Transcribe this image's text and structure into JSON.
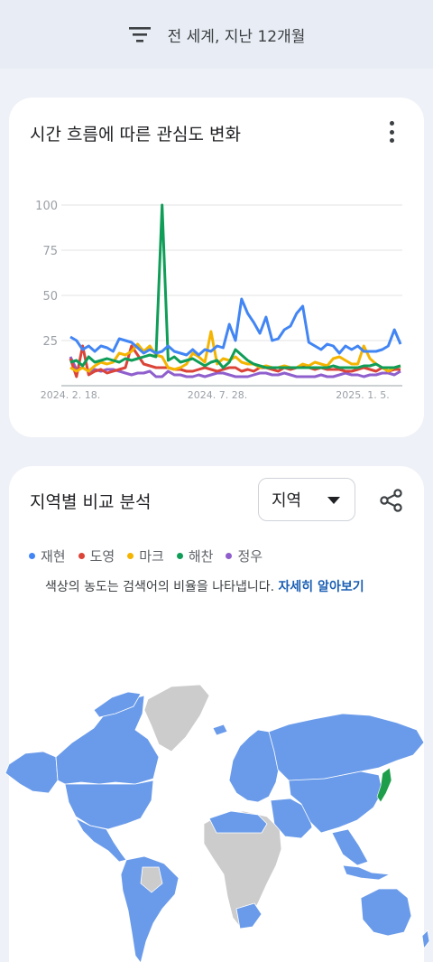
{
  "topbar": {
    "filter_label": "전 세계, 지난 12개월",
    "filter_icon": "filter-icon"
  },
  "interest_card": {
    "title": "시간 흐름에 따른 관심도 변화",
    "more_icon": "more-vert-icon"
  },
  "chart_data": {
    "type": "line",
    "title": "시간 흐름에 따른 관심도 변화",
    "ylim": [
      0,
      100
    ],
    "y_ticks": [
      "100",
      "75",
      "50",
      "25"
    ],
    "x_tick_labels": [
      "2024. 2. 18.",
      "2024. 7. 28.",
      "2025. 1. 5."
    ],
    "grid": true,
    "series": [
      {
        "name": "재현",
        "color": "#4285f4",
        "values": [
          27,
          25,
          20,
          22,
          19,
          22,
          21,
          19,
          26,
          25,
          24,
          21,
          18,
          20,
          18,
          19,
          22,
          19,
          18,
          17,
          20,
          17,
          20,
          19,
          22,
          21,
          34,
          25,
          48,
          40,
          35,
          29,
          38,
          25,
          26,
          31,
          33,
          40,
          44,
          24,
          22,
          20,
          23,
          22,
          18,
          22,
          20,
          22,
          19,
          19,
          19,
          20,
          22,
          31,
          23
        ]
      },
      {
        "name": "도영",
        "color": "#db4437",
        "values": [
          15,
          5,
          22,
          6,
          8,
          9,
          7,
          8,
          9,
          10,
          22,
          17,
          12,
          11,
          10,
          10,
          10,
          9,
          9,
          8,
          8,
          9,
          10,
          9,
          8,
          9,
          10,
          10,
          8,
          9,
          8,
          10,
          10,
          9,
          8,
          10,
          9,
          10,
          11,
          10,
          9,
          10,
          9,
          9,
          9,
          8,
          8,
          9,
          10,
          9,
          8,
          10,
          8,
          9,
          9
        ]
      },
      {
        "name": "마크",
        "color": "#f4b400",
        "values": [
          10,
          8,
          10,
          8,
          11,
          13,
          12,
          13,
          18,
          17,
          19,
          23,
          19,
          22,
          17,
          16,
          10,
          9,
          10,
          12,
          18,
          16,
          13,
          30,
          12,
          15,
          14,
          16,
          13,
          12,
          12,
          10,
          11,
          10,
          10,
          11,
          10,
          10,
          12,
          11,
          13,
          12,
          11,
          15,
          16,
          14,
          12,
          12,
          22,
          15,
          12,
          10,
          8,
          10,
          11
        ]
      },
      {
        "name": "해찬",
        "color": "#0f9d58",
        "values": [
          13,
          14,
          11,
          16,
          13,
          14,
          15,
          14,
          13,
          15,
          14,
          15,
          16,
          17,
          16,
          100,
          14,
          16,
          13,
          14,
          15,
          13,
          11,
          13,
          14,
          10,
          13,
          20,
          17,
          14,
          12,
          11,
          10,
          10,
          10,
          10,
          10,
          10,
          10,
          10,
          10,
          10,
          10,
          11,
          10,
          10,
          10,
          10,
          11,
          11,
          12,
          10,
          10,
          10,
          11
        ]
      },
      {
        "name": "정우",
        "color": "#8f5fcd",
        "values": [
          16,
          9,
          10,
          8,
          9,
          8,
          9,
          9,
          8,
          7,
          6,
          7,
          7,
          8,
          5,
          5,
          8,
          6,
          6,
          5,
          5,
          6,
          5,
          6,
          7,
          7,
          6,
          5,
          5,
          5,
          6,
          7,
          7,
          6,
          6,
          7,
          6,
          5,
          5,
          5,
          5,
          6,
          5,
          5,
          6,
          7,
          6,
          6,
          5,
          6,
          6,
          7,
          7,
          6,
          8
        ]
      }
    ]
  },
  "region_card": {
    "title": "지역별 비교 분석",
    "select_value": "지역",
    "share_icon": "share-icon",
    "legend": [
      {
        "label": "재현",
        "color": "#4285f4"
      },
      {
        "label": "도영",
        "color": "#db4437"
      },
      {
        "label": "마크",
        "color": "#f4b400"
      },
      {
        "label": "해찬",
        "color": "#0f9d58"
      },
      {
        "label": "정우",
        "color": "#8f5fcd"
      }
    ],
    "note_text": "색상의 농도는 검색어의 비율을 나타냅니다.",
    "note_link": "자세히 알아보기",
    "map_colors": {
      "blue": "#6a9bea",
      "gray": "#cccccc",
      "green": "#1e9e4a"
    }
  }
}
